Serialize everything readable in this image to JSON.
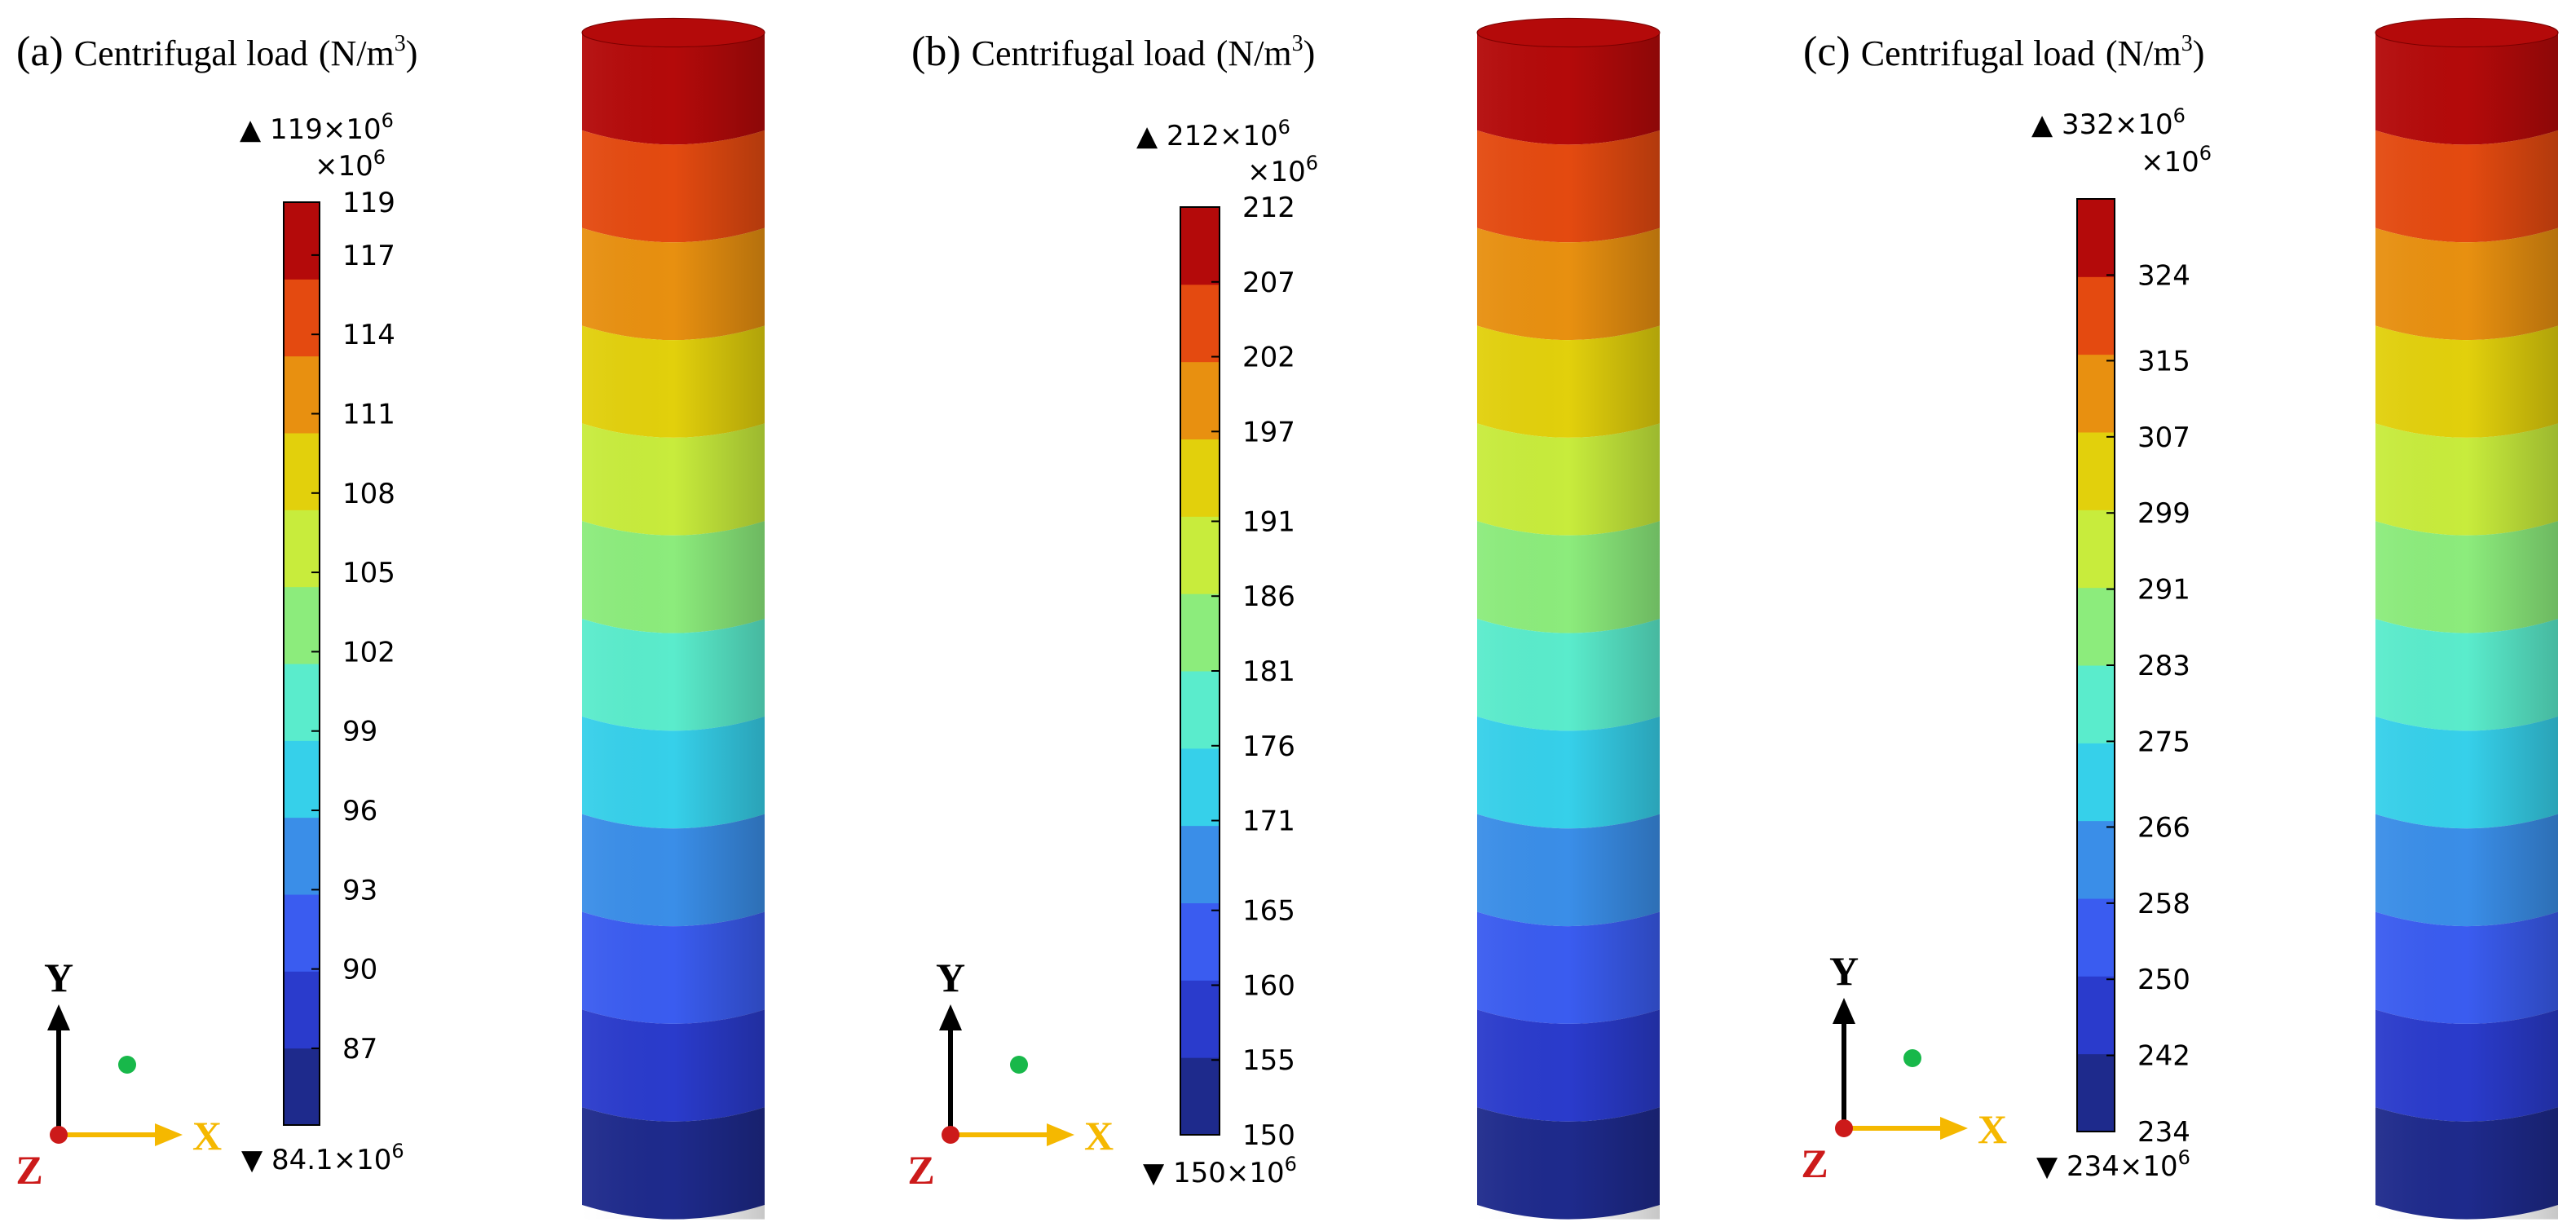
{
  "panels": [
    {
      "id": "a",
      "letter": "(a)",
      "title": "Centrifugal load",
      "unit_base": "(N/m",
      "unit_exp": "3",
      "unit_close": ")",
      "max_label": "▲ 119×10",
      "max_exp": "6",
      "multiplier": "×10",
      "multiplier_exp": "6",
      "min_label": "▼ 84.1×10",
      "min_exp": "6",
      "range": [
        84.1,
        119
      ],
      "ticks": [
        119,
        117,
        114,
        111,
        108,
        105,
        102,
        99,
        96,
        93,
        90,
        87
      ]
    },
    {
      "id": "b",
      "letter": "(b)",
      "title": "Centrifugal load",
      "unit_base": "(N/m",
      "unit_exp": "3",
      "unit_close": ")",
      "max_label": "▲ 212×10",
      "max_exp": "6",
      "multiplier": "×10",
      "multiplier_exp": "6",
      "min_label": "▼ 150×10",
      "min_exp": "6",
      "range": [
        150,
        212
      ],
      "ticks": [
        212,
        207,
        202,
        197,
        191,
        186,
        181,
        176,
        171,
        165,
        160,
        155,
        150
      ]
    },
    {
      "id": "c",
      "letter": "(c)",
      "title": "Centrifugal load",
      "unit_base": "(N/m",
      "unit_exp": "3",
      "unit_close": ")",
      "max_label": "▲ 332×10",
      "max_exp": "6",
      "multiplier": "×10",
      "multiplier_exp": "6",
      "min_label": "▼ 234×10",
      "min_exp": "6",
      "range": [
        234,
        332
      ],
      "ticks": [
        324,
        315,
        307,
        299,
        291,
        283,
        275,
        266,
        258,
        250,
        242,
        234
      ]
    }
  ],
  "axes": {
    "y": "Y",
    "x": "X",
    "z": "Z"
  },
  "colormap": [
    "#1e2a8c",
    "#2a3bcc",
    "#3a5cf0",
    "#3a8ee8",
    "#36d0ea",
    "#5aeccc",
    "#8cec7c",
    "#c8ec3c",
    "#e2d00c",
    "#e89010",
    "#e44a10",
    "#b40a0a"
  ],
  "colors": {
    "y_axis": "#000000",
    "x_axis": "#f5b800",
    "x_label": "#f5b800",
    "z_label": "#cc1a1a",
    "origin_dot": "#cc1a1a",
    "green_dot": "#18b84a"
  }
}
